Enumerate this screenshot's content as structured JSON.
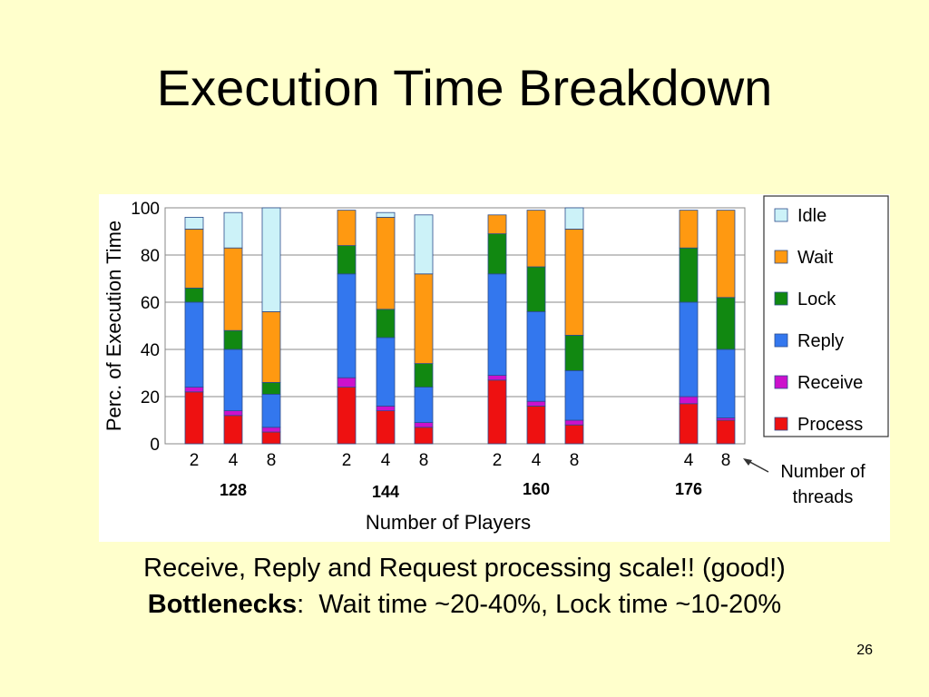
{
  "slide": {
    "title": "Execution Time Breakdown",
    "caption_line1": "Receive, Reply and Request processing scale!! (good!)",
    "caption_line2_bold": "Bottlenecks",
    "caption_line2_sep": ":",
    "caption_line2_rest": "Wait time ~20-40%, Lock time ~10-20%",
    "page_number": "26"
  },
  "chart_data": {
    "type": "bar",
    "stacked": true,
    "ylabel": "Perc. of Execution Time",
    "xlabel": "Number of Players",
    "ylim": [
      0,
      100
    ],
    "yticks": [
      0,
      20,
      40,
      60,
      80,
      100
    ],
    "grid": true,
    "legend_position": "right",
    "groups": [
      {
        "label": "128",
        "threads": [
          "2",
          "4",
          "8"
        ]
      },
      {
        "label": "144",
        "threads": [
          "2",
          "4",
          "8"
        ]
      },
      {
        "label": "160",
        "threads": [
          "2",
          "4",
          "8"
        ]
      },
      {
        "label": "176",
        "threads": [
          "4",
          "8"
        ]
      }
    ],
    "annotation_line1": "Number of",
    "annotation_line2": "threads",
    "series": [
      {
        "name": "Process",
        "color": "#ee1111",
        "values": [
          22,
          12,
          5,
          24,
          14,
          7,
          27,
          16,
          8,
          17,
          10
        ]
      },
      {
        "name": "Receive",
        "color": "#cc11cc",
        "values": [
          2,
          2,
          2,
          4,
          2,
          2,
          2,
          2,
          2,
          3,
          1
        ]
      },
      {
        "name": "Reply",
        "color": "#3377ee",
        "values": [
          36,
          26,
          14,
          44,
          29,
          15,
          43,
          38,
          21,
          40,
          29
        ]
      },
      {
        "name": "Lock",
        "color": "#118811",
        "values": [
          6,
          8,
          5,
          12,
          12,
          10,
          17,
          19,
          15,
          23,
          22
        ]
      },
      {
        "name": "Wait",
        "color": "#ff9911",
        "values": [
          25,
          35,
          30,
          15,
          39,
          38,
          8,
          24,
          45,
          16,
          37
        ]
      },
      {
        "name": "Idle",
        "color": "#ccf2f8",
        "values": [
          5,
          15,
          44,
          0,
          2,
          25,
          0,
          0,
          9,
          0,
          0
        ]
      }
    ],
    "legend_order": [
      "Idle",
      "Wait",
      "Lock",
      "Reply",
      "Receive",
      "Process"
    ]
  }
}
